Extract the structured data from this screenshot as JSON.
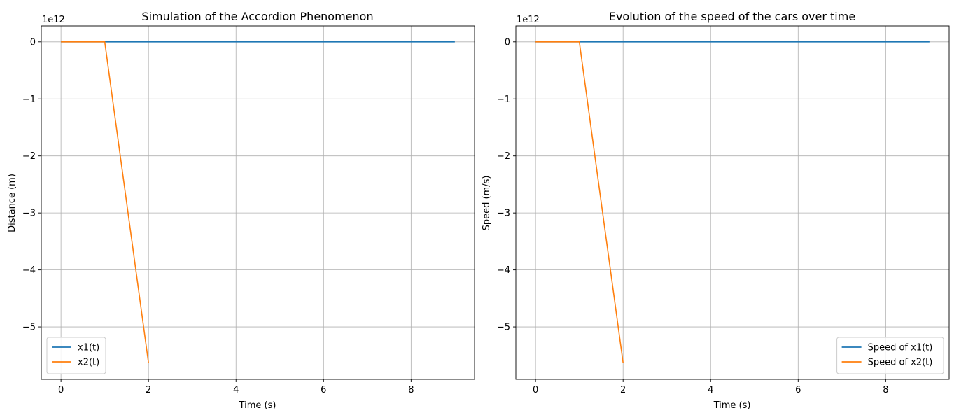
{
  "chart_data": [
    {
      "type": "line",
      "title": "Simulation of the Accordion Phenomenon",
      "xlabel": "Time (s)",
      "ylabel": "Distance (m)",
      "offset_label": "1e12",
      "xlim": [
        -0.45,
        9.45
      ],
      "ylim": [
        -5.92,
        0.28
      ],
      "xticks": [
        0,
        2,
        4,
        6,
        8
      ],
      "yticks": [
        0,
        -1,
        -2,
        -3,
        -4,
        -5
      ],
      "grid": true,
      "legend_position": "lower left",
      "series": [
        {
          "name": "x1(t)",
          "color": "#1f77b4",
          "x": [
            0,
            1,
            2,
            3,
            4,
            5,
            6,
            7,
            8,
            9
          ],
          "y": [
            0,
            0,
            0,
            0,
            0,
            0,
            0,
            0,
            0,
            0
          ]
        },
        {
          "name": "x2(t)",
          "color": "#ff7f0e",
          "x": [
            0,
            1,
            2
          ],
          "y": [
            0,
            0,
            -5.63
          ]
        }
      ]
    },
    {
      "type": "line",
      "title": "Evolution of the speed of the cars over time",
      "xlabel": "Time (s)",
      "ylabel": "Speed (m/s)",
      "offset_label": "1e12",
      "xlim": [
        -0.45,
        9.45
      ],
      "ylim": [
        -5.92,
        0.28
      ],
      "xticks": [
        0,
        2,
        4,
        6,
        8
      ],
      "yticks": [
        0,
        -1,
        -2,
        -3,
        -4,
        -5
      ],
      "grid": true,
      "legend_position": "lower right",
      "series": [
        {
          "name": "Speed of x1(t)",
          "color": "#1f77b4",
          "x": [
            0,
            1,
            2,
            3,
            4,
            5,
            6,
            7,
            8,
            9
          ],
          "y": [
            0,
            0,
            0,
            0,
            0,
            0,
            0,
            0,
            0,
            0
          ]
        },
        {
          "name": "Speed of x2(t)",
          "color": "#ff7f0e",
          "x": [
            0,
            1,
            2
          ],
          "y": [
            0,
            0,
            -5.63
          ]
        }
      ]
    }
  ]
}
